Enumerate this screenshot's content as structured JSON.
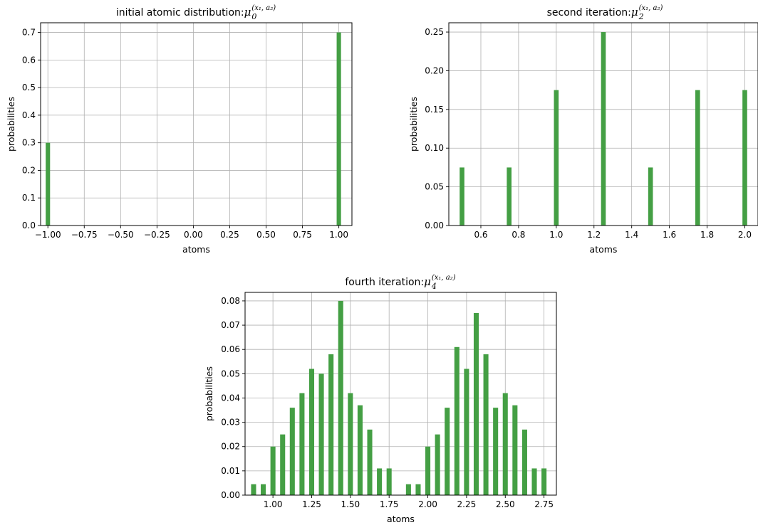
{
  "chart_data": [
    {
      "type": "bar",
      "title_prefix": "initial atomic distribution: ",
      "title_symbol": "μ",
      "title_subscript": "0",
      "title_superscript": "(x₁, a₂)",
      "xlabel": "atoms",
      "ylabel": "probabilities",
      "xlim": [
        -1.05,
        1.09
      ],
      "ylim": [
        0,
        0.735
      ],
      "xticks": [
        -1.0,
        -0.75,
        -0.5,
        -0.25,
        0.0,
        0.25,
        0.5,
        0.75,
        1.0
      ],
      "xtick_labels": [
        "−1.00",
        "−0.75",
        "−0.50",
        "−0.25",
        "0.00",
        "0.25",
        "0.50",
        "0.75",
        "1.00"
      ],
      "yticks": [
        0,
        0.1,
        0.2,
        0.3,
        0.4,
        0.5,
        0.6,
        0.7
      ],
      "ytick_labels": [
        "0.0",
        "0.1",
        "0.2",
        "0.3",
        "0.4",
        "0.5",
        "0.6",
        "0.7"
      ],
      "bar_width": 0.03,
      "grid": true,
      "color": "#449f44",
      "x": [
        -1.0,
        1.0
      ],
      "values": [
        0.3,
        0.7
      ]
    },
    {
      "type": "bar",
      "title_prefix": "second iteration: ",
      "title_symbol": "μ",
      "title_subscript": "2",
      "title_superscript": "(x₁, a₂)",
      "xlabel": "atoms",
      "ylabel": "probabilities",
      "xlim": [
        0.43,
        2.07
      ],
      "ylim": [
        0,
        0.262
      ],
      "xticks": [
        0.6,
        0.8,
        1.0,
        1.2,
        1.4,
        1.6,
        1.8,
        2.0
      ],
      "xtick_labels": [
        "0.6",
        "0.8",
        "1.0",
        "1.2",
        "1.4",
        "1.6",
        "1.8",
        "2.0"
      ],
      "yticks": [
        0,
        0.05,
        0.1,
        0.15,
        0.2,
        0.25
      ],
      "ytick_labels": [
        "0.00",
        "0.05",
        "0.10",
        "0.15",
        "0.20",
        "0.25"
      ],
      "bar_width": 0.025,
      "grid": true,
      "color": "#449f44",
      "x": [
        0.5,
        0.75,
        1.0,
        1.25,
        1.5,
        1.75,
        2.0
      ],
      "values": [
        0.075,
        0.075,
        0.175,
        0.25,
        0.075,
        0.175,
        0.175
      ]
    },
    {
      "type": "bar",
      "title_prefix": "fourth iteration: ",
      "title_symbol": "μ",
      "title_subscript": "4",
      "title_superscript": "(x₁, a₂)",
      "xlabel": "atoms",
      "ylabel": "probabilities",
      "xlim": [
        0.82,
        2.83
      ],
      "ylim": [
        0,
        0.0835
      ],
      "xticks": [
        1.0,
        1.25,
        1.5,
        1.75,
        2.0,
        2.25,
        2.5,
        2.75
      ],
      "xtick_labels": [
        "1.00",
        "1.25",
        "1.50",
        "1.75",
        "2.00",
        "2.25",
        "2.50",
        "2.75"
      ],
      "yticks": [
        0,
        0.01,
        0.02,
        0.03,
        0.04,
        0.05,
        0.06,
        0.07,
        0.08
      ],
      "ytick_labels": [
        "0.00",
        "0.01",
        "0.02",
        "0.03",
        "0.04",
        "0.05",
        "0.06",
        "0.07",
        "0.08"
      ],
      "bar_width": 0.0325,
      "grid": true,
      "color": "#449f44",
      "x": [
        0.875,
        0.9375,
        1.0,
        1.0625,
        1.125,
        1.1875,
        1.25,
        1.3125,
        1.375,
        1.4375,
        1.5,
        1.5625,
        1.625,
        1.6875,
        1.75,
        1.875,
        1.9375,
        2.0,
        2.0625,
        2.125,
        2.1875,
        2.25,
        2.3125,
        2.375,
        2.4375,
        2.5,
        2.5625,
        2.625,
        2.6875,
        2.75
      ],
      "values": [
        0.0045,
        0.0045,
        0.02,
        0.025,
        0.036,
        0.042,
        0.052,
        0.05,
        0.058,
        0.08,
        0.042,
        0.037,
        0.027,
        0.011,
        0.011,
        0.0045,
        0.0045,
        0.02,
        0.025,
        0.036,
        0.061,
        0.052,
        0.075,
        0.058,
        0.036,
        0.042,
        0.037,
        0.027,
        0.011,
        0.011
      ]
    }
  ]
}
